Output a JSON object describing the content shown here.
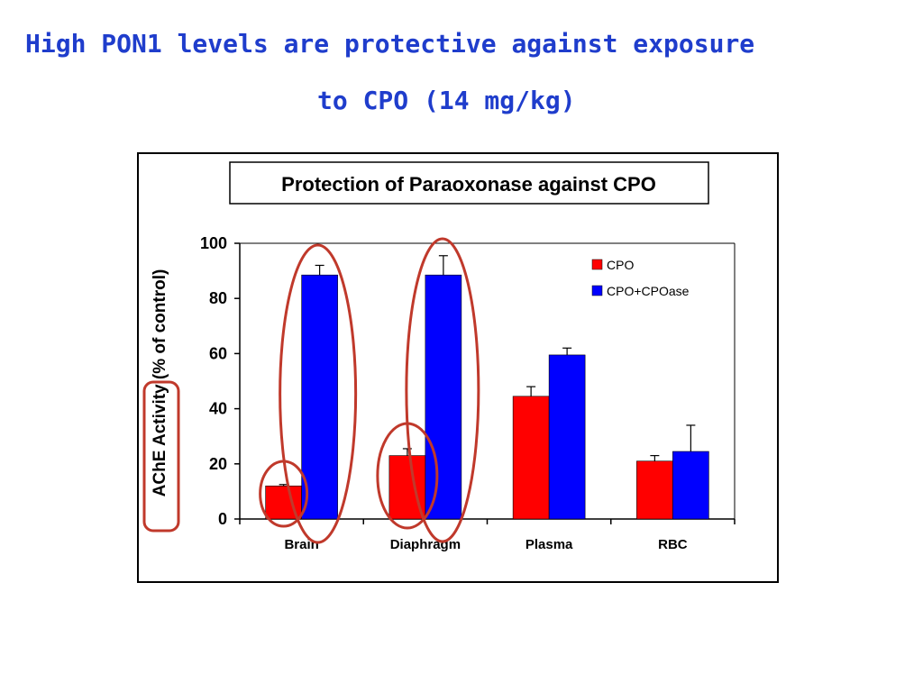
{
  "slide": {
    "title_line1": "High PON1 levels are protective against exposure",
    "title_line2": "to CPO (14 mg/kg)"
  },
  "chart_data": {
    "type": "bar",
    "title": "Protection of Paraoxonase against CPO",
    "ylabel_part1": "AChE Activity",
    "ylabel_part2": " (% of control)",
    "xlabel": "",
    "categories": [
      "Brain",
      "Diaphragm",
      "Plasma",
      "RBC"
    ],
    "series": [
      {
        "name": "CPO",
        "color": "#ff0000",
        "values": [
          12,
          23,
          44.5,
          21
        ],
        "errors": [
          0.5,
          2.5,
          3.5,
          2
        ]
      },
      {
        "name": "CPO+CPOase",
        "color": "#0000ff",
        "values": [
          88.5,
          88.5,
          59.5,
          24.5
        ],
        "errors": [
          3.5,
          7,
          2.5,
          9.5
        ]
      }
    ],
    "ylim": [
      0,
      100
    ],
    "yticks": [
      0,
      20,
      40,
      60,
      80,
      100
    ],
    "grid": false,
    "legend_position": "top-right",
    "annotation_color": "#c0392b"
  }
}
